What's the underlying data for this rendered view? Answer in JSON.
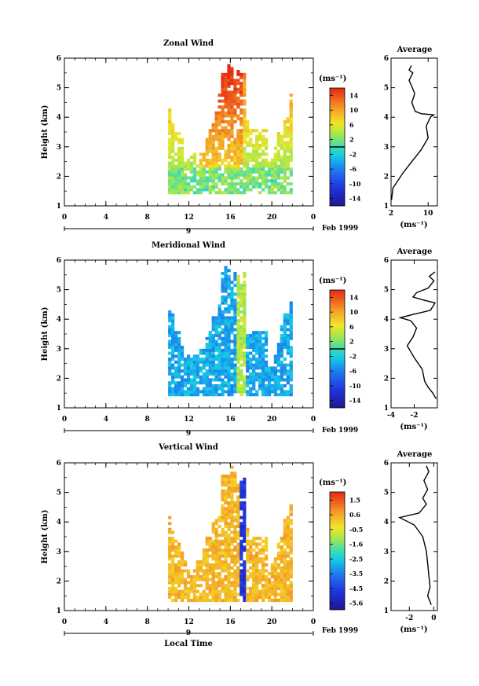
{
  "chart_data": [
    {
      "type": "heatmap",
      "title": "Zonal Wind",
      "ylabel": "Height (km)",
      "xlabel": "",
      "xlim": [
        0,
        24
      ],
      "ylim": [
        1,
        6
      ],
      "x_ticks": [
        "0",
        "4",
        "8",
        "12",
        "16",
        "20",
        "0"
      ],
      "y_ticks": [
        "1",
        "2",
        "3",
        "4",
        "5",
        "6"
      ],
      "date_axis": {
        "day_label": "9",
        "month_label": "Feb 1999"
      },
      "colorbar": {
        "unit": "(ms⁻¹)",
        "min": -16,
        "max": 16,
        "labels": [
          "14",
          "10",
          "6",
          "2",
          "-2",
          "-6",
          "-10",
          "-14"
        ],
        "contour_at": 0
      },
      "colors": {
        "low": "#1a1a8c",
        "mid": "#00c8e6",
        "high": "#e62814"
      },
      "data_extent": {
        "time_range": [
          10,
          22
        ],
        "height_range": [
          1.4,
          5.8
        ]
      },
      "average_profile": {
        "title": "Average",
        "xlabel": "(ms⁻¹)",
        "xlim": [
          2,
          12
        ],
        "x_ticks": [
          "2",
          "10"
        ],
        "ylim": [
          1,
          6
        ],
        "values": [
          [
            2.1,
            1.2
          ],
          [
            2.4,
            1.6
          ],
          [
            4.5,
            2.1
          ],
          [
            6.5,
            2.5
          ],
          [
            8.5,
            2.9
          ],
          [
            10,
            3.3
          ],
          [
            9.6,
            3.7
          ],
          [
            10.5,
            4.0
          ],
          [
            11.2,
            4.08
          ],
          [
            8.5,
            4.12
          ],
          [
            7.2,
            4.2
          ],
          [
            6.5,
            4.5
          ],
          [
            7.1,
            4.8
          ],
          [
            6.6,
            5.0
          ],
          [
            5.9,
            5.25
          ],
          [
            6.7,
            5.5
          ],
          [
            5.9,
            5.6
          ],
          [
            6.4,
            5.75
          ]
        ]
      }
    },
    {
      "type": "heatmap",
      "title": "Meridional Wind",
      "ylabel": "Height (km)",
      "xlabel": "",
      "xlim": [
        0,
        24
      ],
      "ylim": [
        1,
        6
      ],
      "x_ticks": [
        "0",
        "4",
        "8",
        "12",
        "16",
        "20",
        "0"
      ],
      "y_ticks": [
        "1",
        "2",
        "3",
        "4",
        "5",
        "6"
      ],
      "date_axis": {
        "day_label": "9",
        "month_label": "Feb 1999"
      },
      "colorbar": {
        "unit": "(ms⁻¹)",
        "min": -16,
        "max": 16,
        "labels": [
          "14",
          "10",
          "6",
          "2",
          "-2",
          "-6",
          "-10",
          "-14"
        ],
        "contour_at": 0
      },
      "colors": {
        "low": "#1a1a8c",
        "mid": "#00c8e6",
        "high": "#e62814"
      },
      "data_extent": {
        "time_range": [
          10,
          22
        ],
        "height_range": [
          1.4,
          5.8
        ]
      },
      "average_profile": {
        "title": "Average",
        "xlabel": "(ms⁻¹)",
        "xlim": [
          -4,
          0
        ],
        "x_ticks": [
          "-4",
          "-2"
        ],
        "ylim": [
          1,
          6
        ],
        "values": [
          [
            -0.1,
            1.3
          ],
          [
            -0.4,
            1.5
          ],
          [
            -0.8,
            1.7
          ],
          [
            -1.1,
            1.9
          ],
          [
            -1.3,
            2.3
          ],
          [
            -2.0,
            2.7
          ],
          [
            -2.6,
            3.1
          ],
          [
            -2.1,
            3.4
          ],
          [
            -1.8,
            3.7
          ],
          [
            -2.3,
            3.95
          ],
          [
            -3.2,
            4.05
          ],
          [
            -2.2,
            4.15
          ],
          [
            -0.6,
            4.3
          ],
          [
            -0.2,
            4.55
          ],
          [
            -1.2,
            4.65
          ],
          [
            -2.1,
            4.75
          ],
          [
            -1.8,
            4.9
          ],
          [
            -0.8,
            5.05
          ],
          [
            -0.3,
            5.3
          ],
          [
            -0.7,
            5.45
          ],
          [
            -0.2,
            5.6
          ]
        ]
      }
    },
    {
      "type": "heatmap",
      "title": "Vertical Wind",
      "ylabel": "Height (km)",
      "xlabel": "Local Time",
      "xlim": [
        0,
        24
      ],
      "ylim": [
        1,
        6
      ],
      "x_ticks": [
        "0",
        "4",
        "8",
        "12",
        "16",
        "20",
        "0"
      ],
      "y_ticks": [
        "1",
        "2",
        "3",
        "4",
        "5",
        "6"
      ],
      "date_axis": {
        "day_label": "9",
        "month_label": "Feb 1999"
      },
      "colorbar": {
        "unit": "(ms⁻¹)",
        "min": -6.2,
        "max": 2.0,
        "labels": [
          "1.5",
          "0.6",
          "-0.5",
          "-1.6",
          "-2.5",
          "-3.5",
          "-4.5",
          "-5.6"
        ],
        "contour_at": null
      },
      "colors": {
        "low": "#1a1a8c",
        "mid": "#00c8e6",
        "high": "#e62814"
      },
      "data_extent": {
        "time_range": [
          10,
          22
        ],
        "height_range": [
          1.3,
          5.9
        ]
      },
      "average_profile": {
        "title": "Average",
        "xlabel": "(ms⁻¹)",
        "xlim": [
          -3.5,
          0.3
        ],
        "x_ticks": [
          "-2",
          "0"
        ],
        "ylim": [
          1,
          6
        ],
        "values": [
          [
            -0.2,
            1.2
          ],
          [
            -0.5,
            1.5
          ],
          [
            -0.3,
            1.8
          ],
          [
            -0.4,
            2.2
          ],
          [
            -0.5,
            2.6
          ],
          [
            -0.6,
            3.0
          ],
          [
            -0.9,
            3.5
          ],
          [
            -1.6,
            3.9
          ],
          [
            -2.8,
            4.15
          ],
          [
            -1.2,
            4.3
          ],
          [
            -0.6,
            4.6
          ],
          [
            -0.9,
            4.8
          ],
          [
            -0.5,
            5.1
          ],
          [
            -0.8,
            5.4
          ],
          [
            -0.4,
            5.7
          ],
          [
            -0.6,
            5.9
          ]
        ]
      }
    }
  ]
}
